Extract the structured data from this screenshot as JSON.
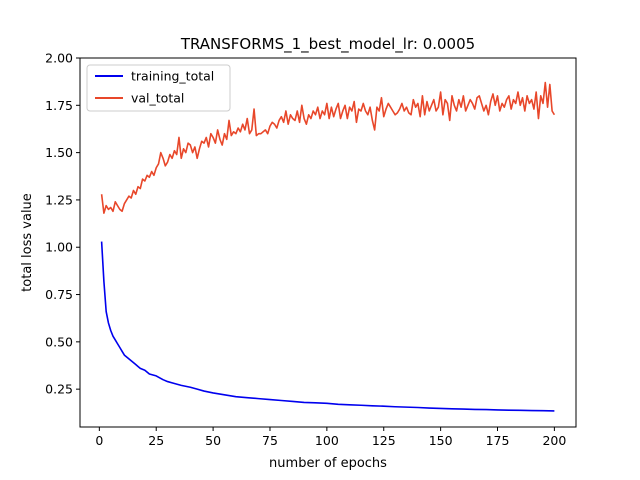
{
  "chart_data": {
    "type": "line",
    "title": "TRANSFORMS_1_best_model_lr: 0.0005",
    "xlabel": "number of epochs",
    "ylabel": "total loss value",
    "xlim": [
      -8.5,
      209.5
    ],
    "ylim": [
      0.05,
      2.0
    ],
    "xticks": [
      "0",
      "25",
      "50",
      "75",
      "100",
      "125",
      "150",
      "175",
      "200"
    ],
    "yticks": [
      "0.25",
      "0.50",
      "0.75",
      "1.00",
      "1.25",
      "1.50",
      "1.75",
      "2.00"
    ],
    "grid": false,
    "legend_position": "top-left",
    "series": [
      {
        "name": "training_total",
        "color": "#0000ee",
        "points": [
          [
            1,
            1.03
          ],
          [
            2,
            0.82
          ],
          [
            3,
            0.66
          ],
          [
            4,
            0.6
          ],
          [
            5,
            0.56
          ],
          [
            6,
            0.53
          ],
          [
            7,
            0.51
          ],
          [
            8,
            0.49
          ],
          [
            9,
            0.47
          ],
          [
            10,
            0.45
          ],
          [
            11,
            0.43
          ],
          [
            12,
            0.42
          ],
          [
            13,
            0.41
          ],
          [
            14,
            0.4
          ],
          [
            15,
            0.39
          ],
          [
            16,
            0.38
          ],
          [
            17,
            0.37
          ],
          [
            18,
            0.36
          ],
          [
            20,
            0.35
          ],
          [
            22,
            0.33
          ],
          [
            25,
            0.32
          ],
          [
            28,
            0.3
          ],
          [
            30,
            0.29
          ],
          [
            33,
            0.28
          ],
          [
            36,
            0.27
          ],
          [
            40,
            0.26
          ],
          [
            43,
            0.25
          ],
          [
            46,
            0.24
          ],
          [
            50,
            0.23
          ],
          [
            55,
            0.22
          ],
          [
            60,
            0.21
          ],
          [
            65,
            0.205
          ],
          [
            70,
            0.2
          ],
          [
            75,
            0.195
          ],
          [
            80,
            0.19
          ],
          [
            85,
            0.185
          ],
          [
            90,
            0.18
          ],
          [
            95,
            0.178
          ],
          [
            100,
            0.175
          ],
          [
            105,
            0.17
          ],
          [
            110,
            0.167
          ],
          [
            115,
            0.165
          ],
          [
            120,
            0.162
          ],
          [
            125,
            0.16
          ],
          [
            130,
            0.157
          ],
          [
            135,
            0.155
          ],
          [
            140,
            0.153
          ],
          [
            145,
            0.15
          ],
          [
            150,
            0.148
          ],
          [
            155,
            0.146
          ],
          [
            160,
            0.145
          ],
          [
            165,
            0.143
          ],
          [
            170,
            0.142
          ],
          [
            175,
            0.14
          ],
          [
            180,
            0.139
          ],
          [
            185,
            0.138
          ],
          [
            190,
            0.137
          ],
          [
            195,
            0.136
          ],
          [
            200,
            0.135
          ]
        ]
      },
      {
        "name": "val_total",
        "color": "#e8472a",
        "points": [
          [
            1,
            1.28
          ],
          [
            2,
            1.18
          ],
          [
            3,
            1.22
          ],
          [
            4,
            1.2
          ],
          [
            5,
            1.21
          ],
          [
            6,
            1.19
          ],
          [
            7,
            1.24
          ],
          [
            8,
            1.22
          ],
          [
            9,
            1.2
          ],
          [
            10,
            1.19
          ],
          [
            11,
            1.23
          ],
          [
            12,
            1.25
          ],
          [
            13,
            1.27
          ],
          [
            14,
            1.26
          ],
          [
            15,
            1.3
          ],
          [
            16,
            1.28
          ],
          [
            17,
            1.32
          ],
          [
            18,
            1.31
          ],
          [
            19,
            1.36
          ],
          [
            20,
            1.35
          ],
          [
            21,
            1.38
          ],
          [
            22,
            1.37
          ],
          [
            23,
            1.4
          ],
          [
            24,
            1.38
          ],
          [
            25,
            1.42
          ],
          [
            26,
            1.44
          ],
          [
            27,
            1.5
          ],
          [
            28,
            1.47
          ],
          [
            29,
            1.43
          ],
          [
            30,
            1.45
          ],
          [
            31,
            1.49
          ],
          [
            32,
            1.47
          ],
          [
            33,
            1.51
          ],
          [
            34,
            1.49
          ],
          [
            35,
            1.58
          ],
          [
            36,
            1.47
          ],
          [
            37,
            1.52
          ],
          [
            38,
            1.5
          ],
          [
            39,
            1.55
          ],
          [
            40,
            1.54
          ],
          [
            41,
            1.5
          ],
          [
            42,
            1.53
          ],
          [
            43,
            1.47
          ],
          [
            44,
            1.52
          ],
          [
            45,
            1.56
          ],
          [
            46,
            1.55
          ],
          [
            47,
            1.58
          ],
          [
            48,
            1.53
          ],
          [
            49,
            1.6
          ],
          [
            50,
            1.58
          ],
          [
            51,
            1.55
          ],
          [
            52,
            1.62
          ],
          [
            53,
            1.57
          ],
          [
            54,
            1.54
          ],
          [
            55,
            1.6
          ],
          [
            56,
            1.57
          ],
          [
            57,
            1.67
          ],
          [
            58,
            1.59
          ],
          [
            59,
            1.61
          ],
          [
            60,
            1.6
          ],
          [
            61,
            1.63
          ],
          [
            62,
            1.61
          ],
          [
            63,
            1.65
          ],
          [
            64,
            1.62
          ],
          [
            65,
            1.68
          ],
          [
            66,
            1.6
          ],
          [
            67,
            1.62
          ],
          [
            68,
            1.73
          ],
          [
            69,
            1.59
          ],
          [
            70,
            1.6
          ],
          [
            71,
            1.6
          ],
          [
            72,
            1.61
          ],
          [
            73,
            1.62
          ],
          [
            74,
            1.6
          ],
          [
            75,
            1.64
          ],
          [
            76,
            1.66
          ],
          [
            77,
            1.65
          ],
          [
            78,
            1.63
          ],
          [
            79,
            1.67
          ],
          [
            80,
            1.69
          ],
          [
            81,
            1.66
          ],
          [
            82,
            1.72
          ],
          [
            83,
            1.65
          ],
          [
            84,
            1.7
          ],
          [
            85,
            1.68
          ],
          [
            86,
            1.67
          ],
          [
            87,
            1.72
          ],
          [
            88,
            1.66
          ],
          [
            89,
            1.75
          ],
          [
            90,
            1.68
          ],
          [
            91,
            1.65
          ],
          [
            92,
            1.7
          ],
          [
            93,
            1.68
          ],
          [
            94,
            1.72
          ],
          [
            95,
            1.7
          ],
          [
            96,
            1.74
          ],
          [
            97,
            1.68
          ],
          [
            98,
            1.72
          ],
          [
            99,
            1.7
          ],
          [
            100,
            1.76
          ],
          [
            101,
            1.68
          ],
          [
            102,
            1.74
          ],
          [
            103,
            1.69
          ],
          [
            104,
            1.73
          ],
          [
            105,
            1.76
          ],
          [
            106,
            1.68
          ],
          [
            107,
            1.72
          ],
          [
            108,
            1.75
          ],
          [
            109,
            1.68
          ],
          [
            110,
            1.74
          ],
          [
            111,
            1.72
          ],
          [
            112,
            1.77
          ],
          [
            113,
            1.66
          ],
          [
            114,
            1.73
          ],
          [
            115,
            1.72
          ],
          [
            116,
            1.76
          ],
          [
            117,
            1.72
          ],
          [
            118,
            1.7
          ],
          [
            119,
            1.74
          ],
          [
            120,
            1.67
          ],
          [
            121,
            1.62
          ],
          [
            122,
            1.74
          ],
          [
            123,
            1.72
          ],
          [
            124,
            1.79
          ],
          [
            125,
            1.69
          ],
          [
            126,
            1.73
          ],
          [
            127,
            1.76
          ],
          [
            128,
            1.74
          ],
          [
            129,
            1.72
          ],
          [
            130,
            1.7
          ],
          [
            131,
            1.71
          ],
          [
            132,
            1.73
          ],
          [
            133,
            1.76
          ],
          [
            134,
            1.72
          ],
          [
            135,
            1.74
          ],
          [
            136,
            1.71
          ],
          [
            137,
            1.7
          ],
          [
            138,
            1.78
          ],
          [
            139,
            1.74
          ],
          [
            140,
            1.76
          ],
          [
            141,
            1.69
          ],
          [
            142,
            1.8
          ],
          [
            143,
            1.7
          ],
          [
            144,
            1.77
          ],
          [
            145,
            1.72
          ],
          [
            146,
            1.75
          ],
          [
            147,
            1.78
          ],
          [
            148,
            1.72
          ],
          [
            149,
            1.74
          ],
          [
            150,
            1.82
          ],
          [
            151,
            1.7
          ],
          [
            152,
            1.78
          ],
          [
            153,
            1.76
          ],
          [
            154,
            1.67
          ],
          [
            155,
            1.8
          ],
          [
            156,
            1.75
          ],
          [
            157,
            1.72
          ],
          [
            158,
            1.78
          ],
          [
            159,
            1.74
          ],
          [
            160,
            1.8
          ],
          [
            161,
            1.72
          ],
          [
            162,
            1.75
          ],
          [
            163,
            1.78
          ],
          [
            164,
            1.76
          ],
          [
            165,
            1.73
          ],
          [
            166,
            1.79
          ],
          [
            167,
            1.8
          ],
          [
            168,
            1.76
          ],
          [
            169,
            1.72
          ],
          [
            170,
            1.75
          ],
          [
            171,
            1.7
          ],
          [
            172,
            1.77
          ],
          [
            173,
            1.81
          ],
          [
            174,
            1.75
          ],
          [
            175,
            1.8
          ],
          [
            176,
            1.72
          ],
          [
            177,
            1.76
          ],
          [
            178,
            1.74
          ],
          [
            179,
            1.78
          ],
          [
            180,
            1.8
          ],
          [
            181,
            1.73
          ],
          [
            182,
            1.78
          ],
          [
            183,
            1.76
          ],
          [
            184,
            1.82
          ],
          [
            185,
            1.75
          ],
          [
            186,
            1.79
          ],
          [
            187,
            1.72
          ],
          [
            188,
            1.8
          ],
          [
            189,
            1.76
          ],
          [
            190,
            1.78
          ],
          [
            191,
            1.73
          ],
          [
            192,
            1.82
          ],
          [
            193,
            1.68
          ],
          [
            194,
            1.8
          ],
          [
            195,
            1.76
          ],
          [
            196,
            1.87
          ],
          [
            197,
            1.74
          ],
          [
            198,
            1.86
          ],
          [
            199,
            1.72
          ],
          [
            200,
            1.7
          ]
        ]
      }
    ]
  }
}
